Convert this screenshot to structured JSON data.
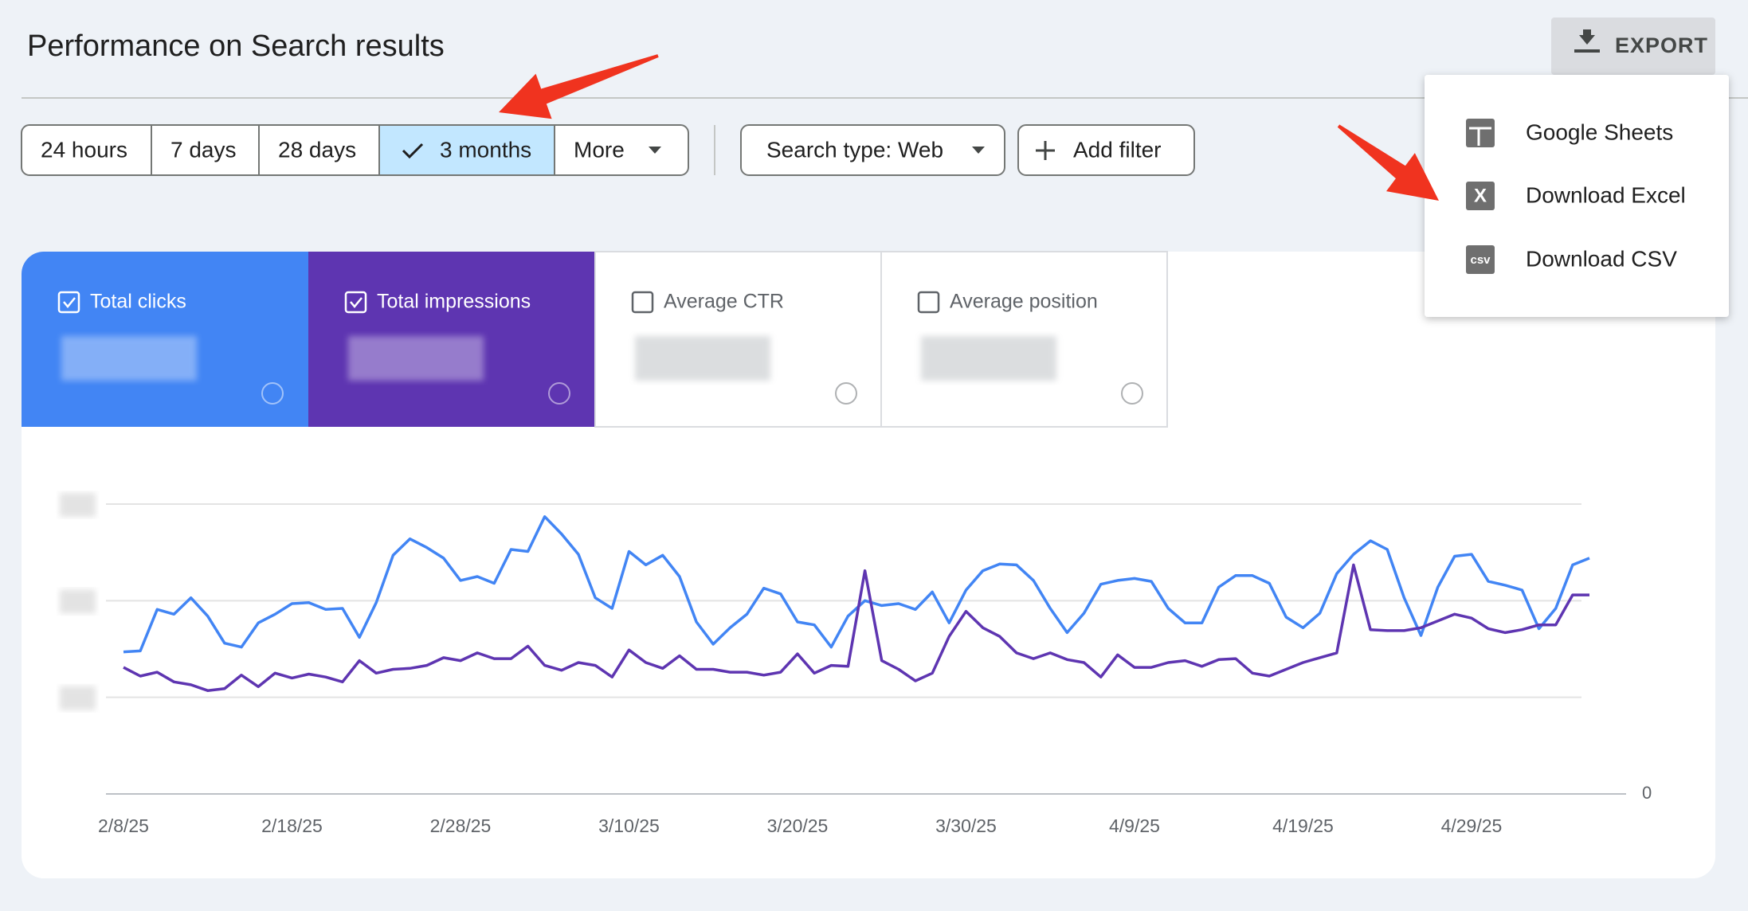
{
  "header": {
    "title": "Performance on Search results",
    "export": "EXPORT"
  },
  "export_menu": [
    {
      "label": "Google Sheets"
    },
    {
      "label": "Download Excel",
      "icon": "X"
    },
    {
      "label": "Download CSV",
      "icon": "csv"
    }
  ],
  "date_range": {
    "options": [
      "24 hours",
      "7 days",
      "28 days",
      "3 months",
      "More"
    ],
    "selected": "3 months"
  },
  "filters": [
    "Search type: Web",
    "Add filter"
  ],
  "cards": [
    {
      "label": "Average CTR",
      "checked": false
    },
    {
      "label": "Average position",
      "checked": false
    }
  ],
  "chart_data": {
    "type": "line",
    "categories": [
      "2/8/25",
      null,
      null,
      null,
      null,
      null,
      null,
      null,
      null,
      null,
      "2/18/25",
      null,
      null,
      null,
      null,
      null,
      null,
      null,
      null,
      null,
      "2/28/25",
      null,
      null,
      null,
      null,
      null,
      null,
      null,
      null,
      null,
      "3/10/25",
      null,
      null,
      null,
      null,
      null,
      null,
      null,
      null,
      null,
      "3/20/25",
      null,
      null,
      null,
      null,
      null,
      null,
      null,
      null,
      null,
      "3/30/25",
      null,
      null,
      null,
      null,
      null,
      null,
      null,
      null,
      null,
      "4/9/25",
      null,
      null,
      null,
      null,
      null,
      null,
      null,
      null,
      null,
      "4/19/25",
      null,
      null,
      null,
      null,
      null,
      null,
      null,
      null,
      null,
      "4/29/25",
      null,
      null,
      null,
      null,
      null,
      null,
      null
    ],
    "series": [
      {
        "name": "Total clicks",
        "color": "#4285f4",
        "checked": true,
        "values": [
          1.47,
          1.48,
          1.91,
          1.86,
          2.03,
          1.84,
          1.56,
          1.52,
          1.77,
          1.86,
          1.97,
          1.98,
          1.91,
          1.92,
          1.62,
          1.98,
          2.47,
          2.64,
          2.55,
          2.44,
          2.21,
          2.25,
          2.18,
          2.53,
          2.51,
          2.87,
          2.69,
          2.48,
          2.03,
          1.92,
          2.51,
          2.37,
          2.47,
          2.25,
          1.78,
          1.55,
          1.72,
          1.86,
          2.13,
          2.07,
          1.78,
          1.75,
          1.52,
          1.84,
          2.0,
          1.95,
          1.97,
          1.91,
          2.09,
          1.77,
          2.11,
          2.31,
          2.38,
          2.37,
          2.21,
          1.92,
          1.67,
          1.87,
          2.17,
          2.21,
          2.23,
          2.2,
          1.92,
          1.77,
          1.77,
          2.14,
          2.26,
          2.26,
          2.18,
          1.83,
          1.72,
          1.87,
          2.28,
          2.48,
          2.62,
          2.53,
          2.03,
          1.64,
          2.14,
          2.46,
          2.48,
          2.2,
          2.16,
          2.11,
          1.71,
          1.92,
          2.37,
          2.44
        ]
      },
      {
        "name": "Total impressions",
        "color": "#5e35b1",
        "checked": true,
        "axis": "y2",
        "values": [
          1.31,
          1.22,
          1.26,
          1.16,
          1.13,
          1.07,
          1.09,
          1.23,
          1.11,
          1.25,
          1.2,
          1.24,
          1.21,
          1.16,
          1.38,
          1.25,
          1.29,
          1.3,
          1.33,
          1.41,
          1.38,
          1.46,
          1.4,
          1.4,
          1.53,
          1.33,
          1.28,
          1.36,
          1.33,
          1.21,
          1.49,
          1.36,
          1.3,
          1.43,
          1.29,
          1.29,
          1.26,
          1.26,
          1.23,
          1.26,
          1.45,
          1.25,
          1.33,
          1.32,
          2.31,
          1.38,
          1.29,
          1.17,
          1.25,
          1.63,
          1.89,
          1.72,
          1.63,
          1.46,
          1.4,
          1.46,
          1.39,
          1.36,
          1.21,
          1.44,
          1.31,
          1.31,
          1.36,
          1.38,
          1.32,
          1.39,
          1.4,
          1.25,
          1.22,
          1.29,
          1.36,
          1.41,
          1.46,
          2.37,
          1.7,
          1.69,
          1.69,
          1.72,
          1.79,
          1.86,
          1.82,
          1.71,
          1.67,
          1.7,
          1.75,
          1.75,
          2.06,
          2.06
        ]
      }
    ],
    "ylim": [
      0,
      3
    ],
    "yticks": [
      {
        "value": 1,
        "label": null
      },
      {
        "value": 2,
        "label": null
      },
      {
        "value": 3,
        "label": null
      }
    ],
    "y2lim": [
      0,
      3
    ],
    "y2ticks": [
      0
    ],
    "grid": true
  }
}
